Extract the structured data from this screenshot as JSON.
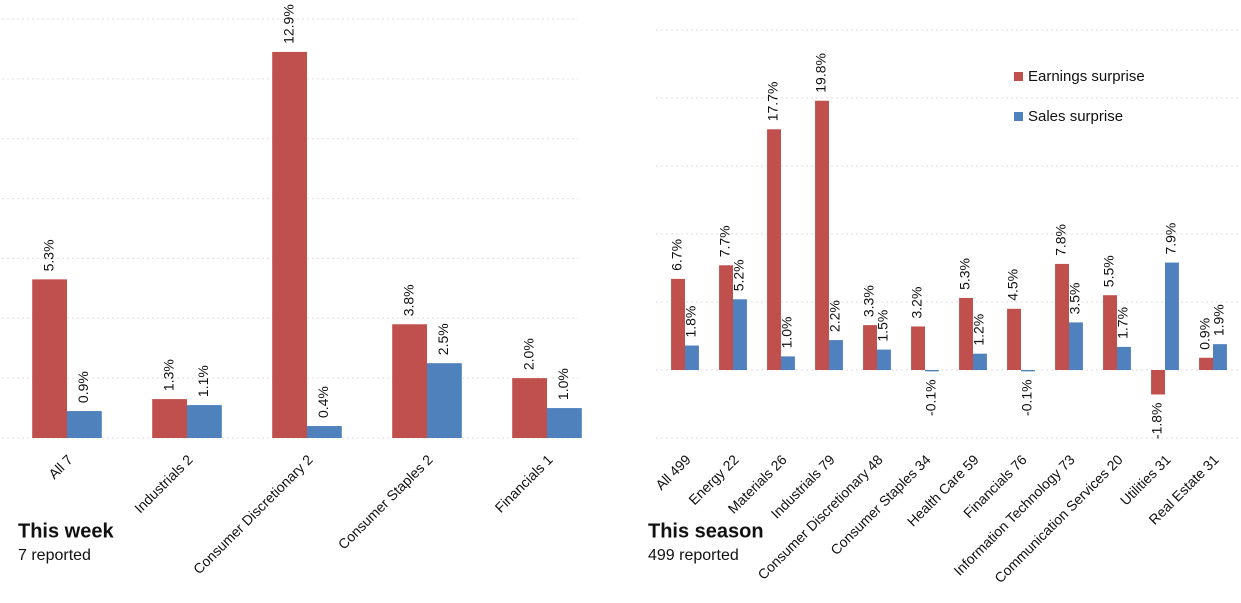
{
  "chart_data": [
    {
      "type": "bar",
      "title": "This week",
      "subtitle": "7 reported",
      "categories": [
        "All 7",
        "Industrials 2",
        "Consumer Discretionary 2",
        "Consumer Staples 2",
        "Financials 1"
      ],
      "series": [
        {
          "name": "Earnings surprise",
          "color": "#c0504d",
          "values": [
            5.3,
            1.3,
            12.9,
            3.8,
            2.0
          ],
          "value_labels": [
            "5.3%",
            "1.3%",
            "12.9%",
            "3.8%",
            "2.0%"
          ]
        },
        {
          "name": "Sales surprise",
          "color": "#4f81bd",
          "values": [
            0.9,
            1.1,
            0.4,
            2.5,
            1.0
          ],
          "value_labels": [
            "0.9%",
            "1.1%",
            "0.4%",
            "2.5%",
            "1.0%"
          ]
        }
      ],
      "ylim": [
        0,
        14
      ],
      "yticks": [
        0,
        2,
        4,
        6,
        8,
        10,
        12,
        14
      ],
      "grid": true,
      "legend": false
    },
    {
      "type": "bar",
      "title": "This season",
      "subtitle": "499 reported",
      "categories": [
        "All 499",
        "Energy 22",
        "Materials 26",
        "Industrials 79",
        "Consumer Discretionary 48",
        "Consumer Staples 34",
        "Health Care 59",
        "Financials 76",
        "Information Technology 73",
        "Communication Services 20",
        "Utilities 31",
        "Real Estate 31"
      ],
      "series": [
        {
          "name": "Earnings surprise",
          "color": "#c0504d",
          "values": [
            6.7,
            7.7,
            17.7,
            19.8,
            3.3,
            3.2,
            5.3,
            4.5,
            7.8,
            5.5,
            -1.8,
            0.9
          ],
          "value_labels": [
            "6.7%",
            "7.7%",
            "17.7%",
            "19.8%",
            "3.3%",
            "3.2%",
            "5.3%",
            "4.5%",
            "7.8%",
            "5.5%",
            "-1.8%",
            "0.9%"
          ]
        },
        {
          "name": "Sales surprise",
          "color": "#4f81bd",
          "values": [
            1.8,
            5.2,
            1.0,
            2.2,
            1.5,
            -0.1,
            1.2,
            -0.1,
            3.5,
            1.7,
            7.9,
            1.9
          ],
          "value_labels": [
            "1.8%",
            "5.2%",
            "1.0%",
            "2.2%",
            "1.5%",
            "-0.1%",
            "1.2%",
            "-0.1%",
            "3.5%",
            "1.7%",
            "7.9%",
            "1.9%"
          ]
        }
      ],
      "ylim": [
        -5,
        25
      ],
      "yticks": [
        -5,
        0,
        5,
        10,
        15,
        20,
        25
      ],
      "grid": true,
      "legend": "upper right"
    }
  ]
}
